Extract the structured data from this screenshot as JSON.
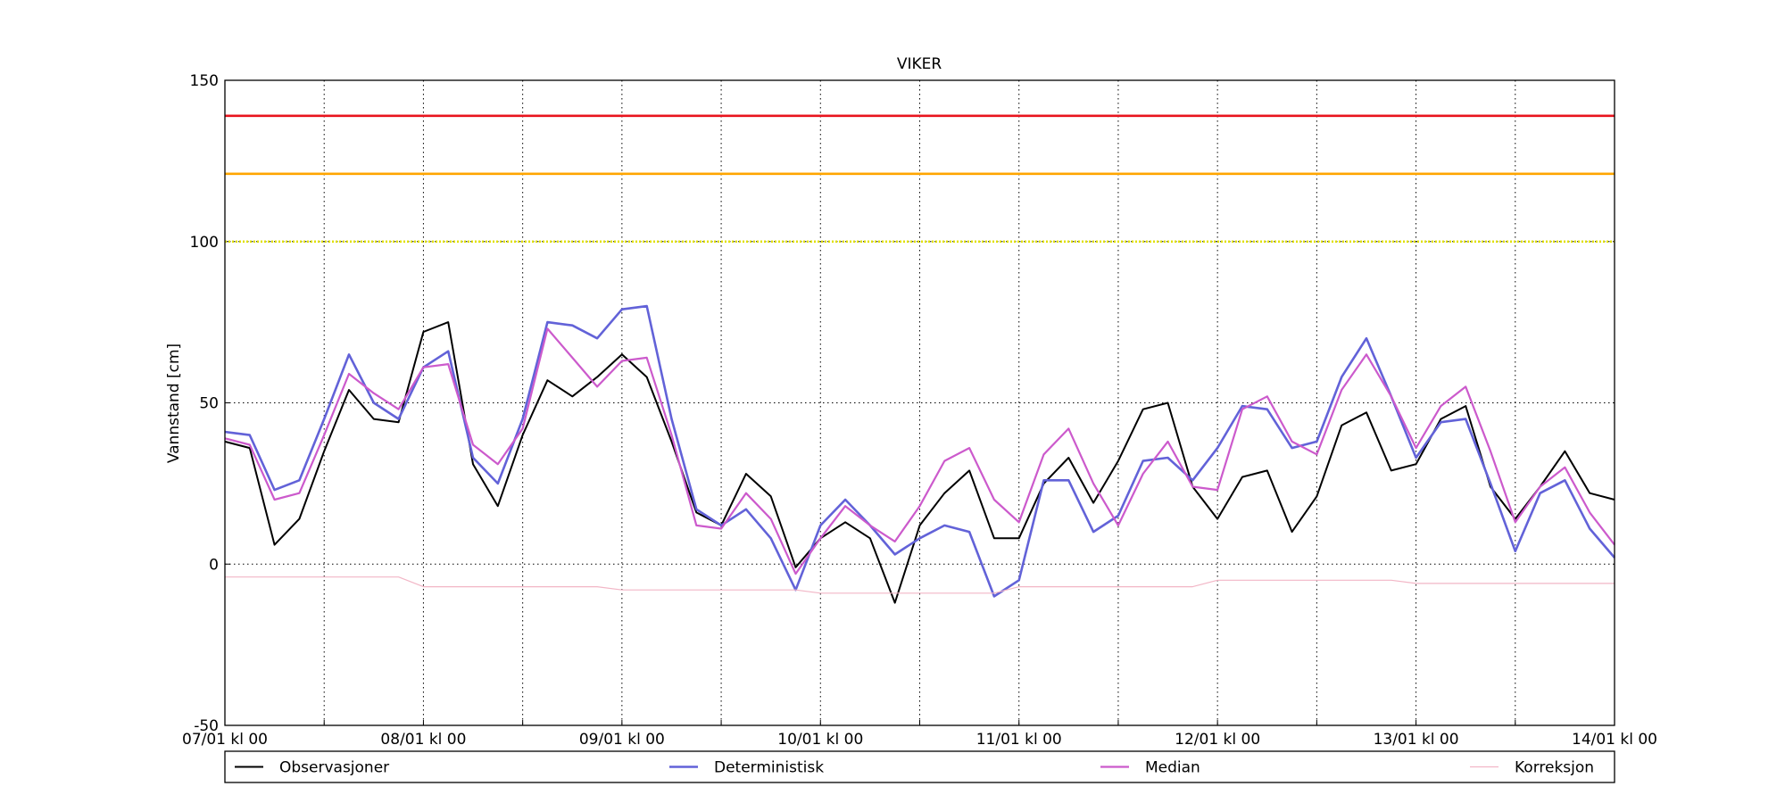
{
  "chart_data": {
    "type": "line",
    "title": "VIKER",
    "ylabel": "Vannstand [cm]",
    "x": [
      0,
      3,
      6,
      9,
      12,
      15,
      18,
      21,
      24,
      27,
      30,
      33,
      36,
      39,
      42,
      45,
      48,
      51,
      54,
      57,
      60,
      63,
      66,
      69,
      72,
      75,
      78,
      81,
      84,
      87,
      90,
      93,
      96,
      99,
      102,
      105,
      108,
      111,
      114,
      117,
      120,
      123,
      126,
      129,
      132,
      135,
      138,
      141,
      144,
      147,
      150,
      153,
      156,
      159,
      162,
      165,
      168
    ],
    "xlim": [
      0,
      168
    ],
    "xticks": [
      {
        "value": 0,
        "label": "07/01 kl 00"
      },
      {
        "value": 24,
        "label": "08/01 kl 00"
      },
      {
        "value": 48,
        "label": "09/01 kl 00"
      },
      {
        "value": 72,
        "label": "10/01 kl 00"
      },
      {
        "value": 96,
        "label": "11/01 kl 00"
      },
      {
        "value": 120,
        "label": "12/01 kl 00"
      },
      {
        "value": 144,
        "label": "13/01 kl 00"
      },
      {
        "value": 168,
        "label": "14/01 kl 00"
      }
    ],
    "xminorticks": [
      12,
      36,
      60,
      84,
      108,
      132,
      156
    ],
    "ylim": [
      -50,
      150
    ],
    "yticks": [
      -50,
      0,
      50,
      100,
      150
    ],
    "grid": true,
    "legend": "below",
    "hlines": [
      {
        "value": 139,
        "color": "#e8141e",
        "style": "solid"
      },
      {
        "value": 121,
        "color": "#ffa500",
        "style": "solid"
      },
      {
        "value": 100,
        "color": "#e0e000",
        "style": "dotted"
      }
    ],
    "series": [
      {
        "name": "Observasjoner",
        "color": "#000000",
        "width": 2,
        "values": [
          38,
          36,
          6,
          14,
          35,
          54,
          45,
          44,
          72,
          75,
          31,
          18,
          40,
          57,
          52,
          58,
          65,
          58,
          38,
          16,
          12,
          28,
          21,
          -1,
          8,
          13,
          8,
          -12,
          12,
          22,
          29,
          8,
          8,
          25,
          33,
          19,
          32,
          48,
          50,
          24,
          14,
          27,
          29,
          10,
          21,
          43,
          47,
          29,
          31,
          45,
          49,
          24,
          14,
          24,
          35,
          22,
          20
        ]
      },
      {
        "name": "Deterministisk",
        "color": "#6262d8",
        "width": 2.6,
        "values": [
          41,
          40,
          23,
          26,
          45,
          65,
          50,
          45,
          61,
          66,
          33,
          25,
          45,
          75,
          74,
          70,
          79,
          80,
          45,
          17,
          12,
          17,
          8,
          -8,
          12,
          20,
          12,
          3,
          8,
          12,
          10,
          -10,
          -5,
          26,
          26,
          10,
          15,
          32,
          33,
          26,
          36,
          49,
          48,
          36,
          38,
          58,
          70,
          52,
          33,
          44,
          45,
          25,
          4,
          22,
          26,
          11,
          2
        ]
      },
      {
        "name": "Median",
        "color": "#cc5acc",
        "width": 2.2,
        "values": [
          39,
          37,
          20,
          22,
          40,
          59,
          53,
          48,
          61,
          62,
          37,
          31,
          42,
          73,
          64,
          55,
          63,
          64,
          40,
          12,
          11,
          22,
          14,
          -3,
          8,
          18,
          12,
          7,
          18,
          32,
          36,
          20,
          13,
          34,
          42,
          25,
          12,
          28,
          38,
          24,
          23,
          48,
          52,
          38,
          34,
          54,
          65,
          52,
          36,
          49,
          55,
          35,
          13,
          24,
          30,
          16,
          6
        ]
      },
      {
        "name": "Korreksjon",
        "color": "#f2b6c6",
        "width": 1.2,
        "values": [
          -4,
          -4,
          -4,
          -4,
          -4,
          -4,
          -4,
          -4,
          -7,
          -7,
          -7,
          -7,
          -7,
          -7,
          -7,
          -7,
          -8,
          -8,
          -8,
          -8,
          -8,
          -8,
          -8,
          -8,
          -9,
          -9,
          -9,
          -9,
          -9,
          -9,
          -9,
          -9,
          -7,
          -7,
          -7,
          -7,
          -7,
          -7,
          -7,
          -7,
          -5,
          -5,
          -5,
          -5,
          -5,
          -5,
          -5,
          -5,
          -6,
          -6,
          -6,
          -6,
          -6,
          -6,
          -6,
          -6,
          -6
        ]
      }
    ]
  }
}
